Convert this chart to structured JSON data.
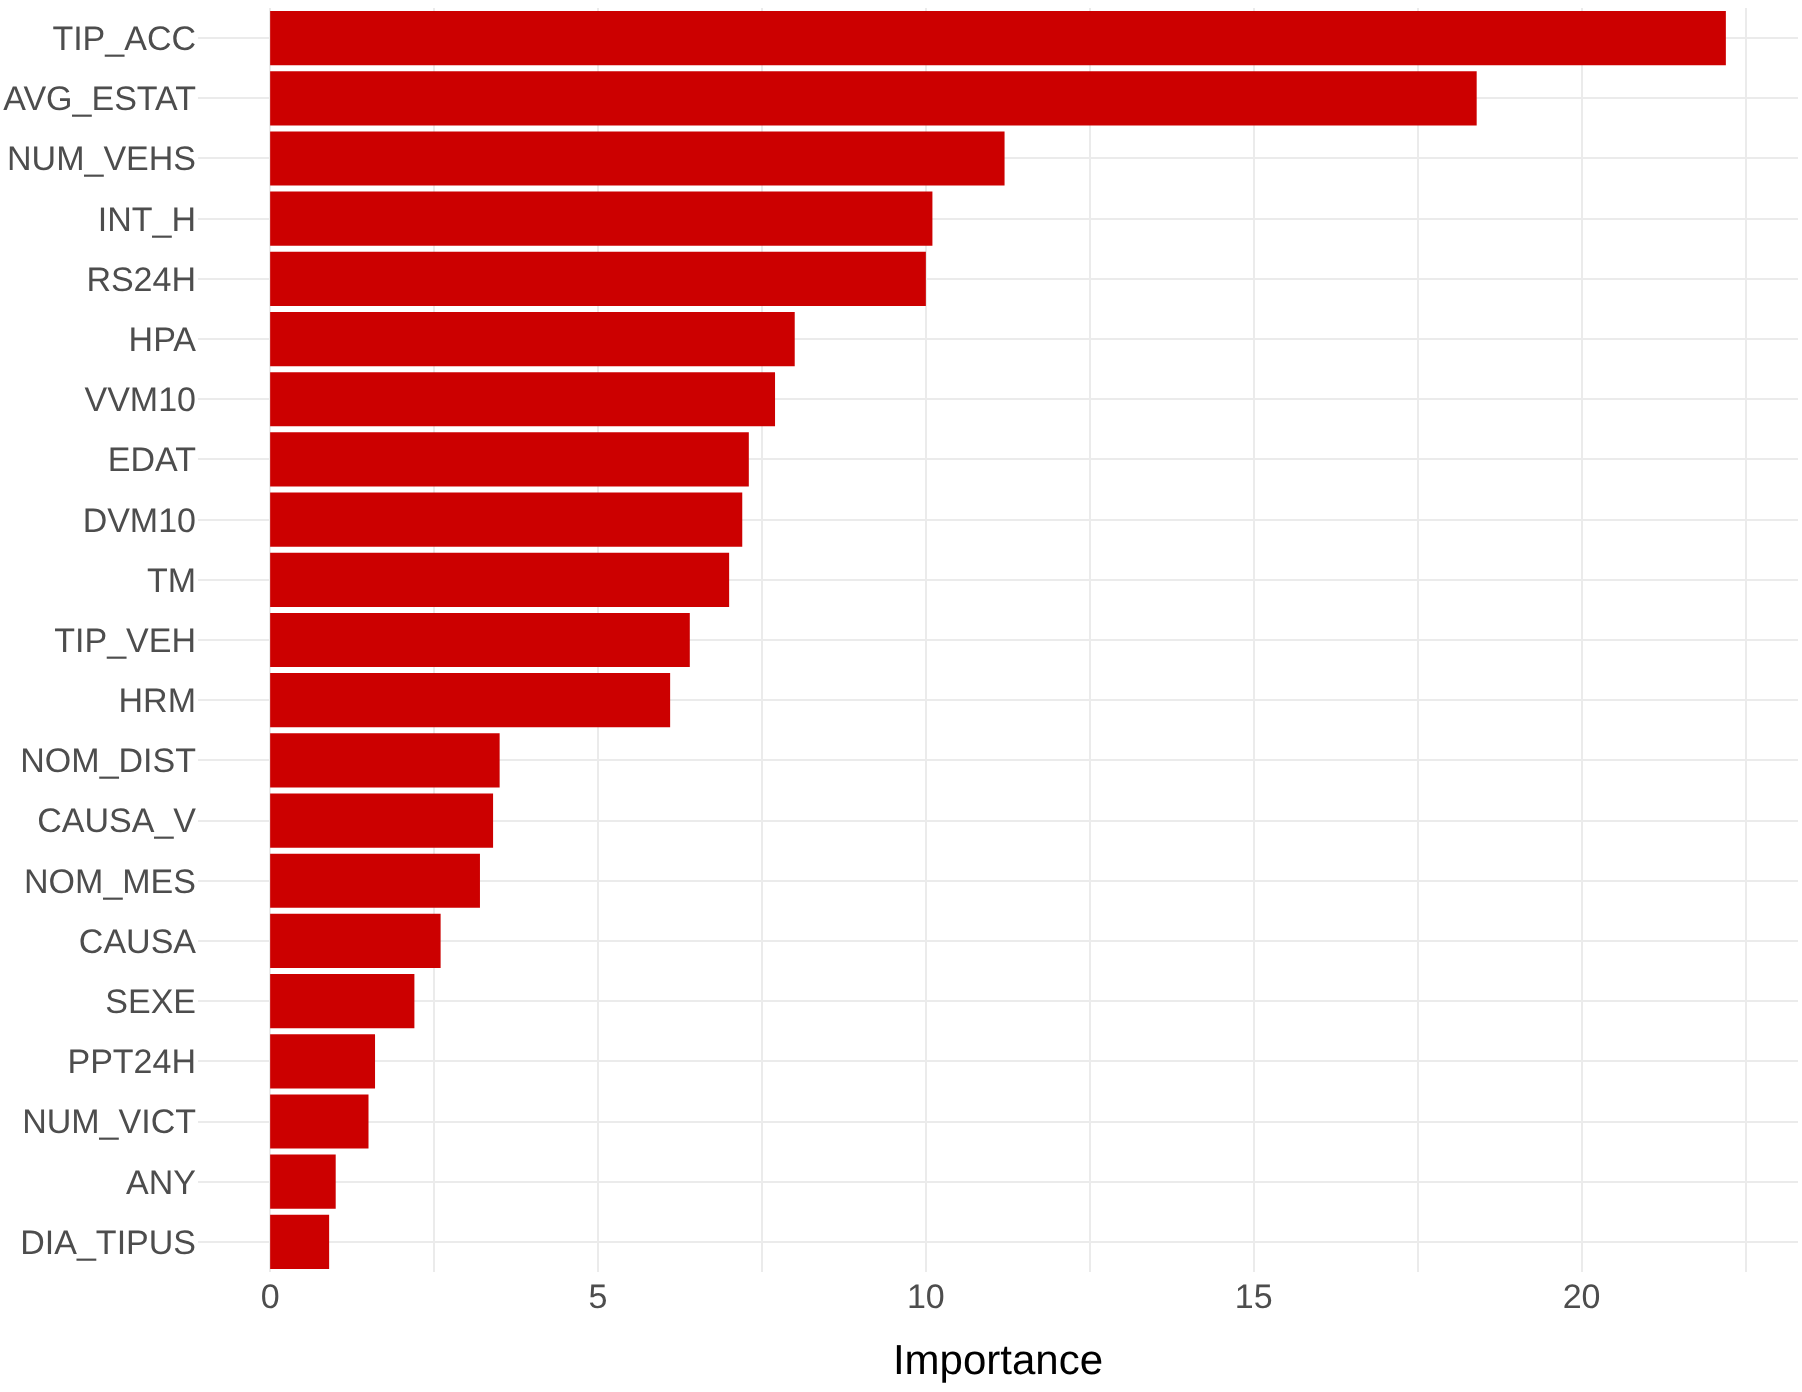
{
  "chart_data": {
    "type": "bar",
    "orientation": "horizontal",
    "xlabel": "Importance",
    "categories": [
      "TIP_ACC",
      "AVG_ESTAT",
      "NUM_VEHS",
      "INT_H",
      "RS24H",
      "HPA",
      "VVM10",
      "EDAT",
      "DVM10",
      "TM",
      "TIP_VEH",
      "HRM",
      "NOM_DIST",
      "CAUSA_V",
      "NOM_MES",
      "CAUSA",
      "SEXE",
      "PPT24H",
      "NUM_VICT",
      "ANY",
      "DIA_TIPUS"
    ],
    "values": [
      22.2,
      18.4,
      11.2,
      10.1,
      10.0,
      8.0,
      7.7,
      7.3,
      7.2,
      7.0,
      6.4,
      6.1,
      3.5,
      3.4,
      3.2,
      2.6,
      2.2,
      1.6,
      1.5,
      1.0,
      0.9
    ],
    "color": "#cc0000",
    "xlim": [
      -1.1,
      23.3
    ],
    "xticks": [
      0,
      {
        "value": 2.5,
        "label": null
      },
      5,
      {
        "value": 7.5,
        "label": null
      },
      10,
      {
        "value": 12.5,
        "label": null
      },
      15,
      {
        "value": 17.5,
        "label": null
      },
      20,
      {
        "value": 22.5,
        "label": null
      }
    ],
    "grid": true,
    "legend": false
  }
}
